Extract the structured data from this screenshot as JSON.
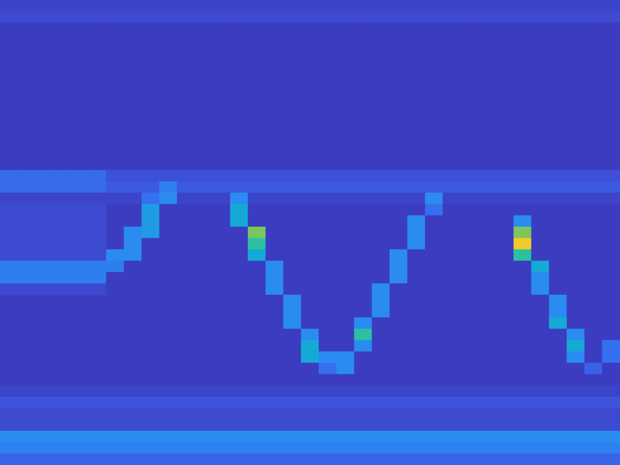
{
  "chart_data": {
    "type": "heatmap",
    "tick_labels": false,
    "grid": false,
    "color_range": [
      0,
      10
    ],
    "z": [
      [
        1.3,
        1.3,
        1.3,
        1.3,
        1.3,
        1.3,
        1.3,
        1.3,
        1.3,
        1.3,
        1.3,
        1.3,
        1.3,
        1.3,
        1.3,
        1.3,
        1.3,
        1.3,
        1.3,
        1.3,
        1.3,
        1.3,
        1.3,
        1.3,
        1.3,
        1.3,
        1.3,
        1.3,
        1.3,
        1.3,
        1.3,
        1.3,
        1.3,
        1.3,
        1.3
      ],
      [
        1.6,
        1.6,
        1.6,
        1.6,
        1.6,
        1.6,
        1.6,
        1.6,
        1.6,
        1.6,
        1.6,
        1.6,
        1.6,
        1.6,
        1.6,
        1.6,
        1.6,
        1.6,
        1.6,
        1.6,
        1.6,
        1.6,
        1.6,
        1.6,
        1.6,
        1.6,
        1.6,
        1.6,
        1.6,
        1.6,
        1.6,
        1.6,
        1.6,
        1.6,
        1.6
      ],
      [
        1,
        1,
        1,
        1,
        1,
        1,
        1,
        1,
        1,
        1,
        1,
        1,
        1,
        1,
        1,
        1,
        1,
        1,
        1,
        1,
        1,
        1,
        1,
        1,
        1,
        1,
        1,
        1,
        1,
        1,
        1,
        1,
        1,
        1,
        1
      ],
      [
        1,
        1,
        1,
        1,
        1,
        1,
        1,
        1,
        1,
        1,
        1,
        1,
        1,
        1,
        1,
        1,
        1,
        1,
        1,
        1,
        1,
        1,
        1,
        1,
        1,
        1,
        1,
        1,
        1,
        1,
        1,
        1,
        1,
        1,
        1
      ],
      [
        1,
        1,
        1,
        1,
        1,
        1,
        1,
        1,
        1,
        1,
        1,
        1,
        1,
        1,
        1,
        1,
        1,
        1,
        1,
        1,
        1,
        1,
        1,
        1,
        1,
        1,
        1,
        1,
        1,
        1,
        1,
        1,
        1,
        1,
        1
      ],
      [
        1,
        1,
        1,
        1,
        1,
        1,
        1,
        1,
        1,
        1,
        1,
        1,
        1,
        1,
        1,
        1,
        1,
        1,
        1,
        1,
        1,
        1,
        1,
        1,
        1,
        1,
        1,
        1,
        1,
        1,
        1,
        1,
        1,
        1,
        1
      ],
      [
        1,
        1,
        1,
        1,
        1,
        1,
        1,
        1,
        1,
        1,
        1,
        1,
        1,
        1,
        1,
        1,
        1,
        1,
        1,
        1,
        1,
        1,
        1,
        1,
        1,
        1,
        1,
        1,
        1,
        1,
        1,
        1,
        1,
        1,
        1
      ],
      [
        1,
        1,
        1,
        1,
        1,
        1,
        1,
        1,
        1,
        1,
        1,
        1,
        1,
        1,
        1,
        1,
        1,
        1,
        1,
        1,
        1,
        1,
        1,
        1,
        1,
        1,
        1,
        1,
        1,
        1,
        1,
        1,
        1,
        1,
        1
      ],
      [
        1,
        1,
        1,
        1,
        1,
        1,
        1,
        1,
        1,
        1,
        1,
        1,
        1,
        1,
        1,
        1,
        1,
        1,
        1,
        1,
        1,
        1,
        1,
        1,
        1,
        1,
        1,
        1,
        1,
        1,
        1,
        1,
        1,
        1,
        1
      ],
      [
        1,
        1,
        1,
        1,
        1,
        1,
        1,
        1,
        1,
        1,
        1,
        1,
        1,
        1,
        1,
        1,
        1,
        1,
        1,
        1,
        1,
        1,
        1,
        1,
        1,
        1,
        1,
        1,
        1,
        1,
        1,
        1,
        1,
        1,
        1
      ],
      [
        1,
        1,
        1,
        1,
        1,
        1,
        1,
        1,
        1,
        1,
        1,
        1,
        1,
        1,
        1,
        1,
        1,
        1,
        1,
        1,
        1,
        1,
        1,
        1,
        1,
        1,
        1,
        1,
        1,
        1,
        1,
        1,
        1,
        1,
        1
      ],
      [
        1,
        1,
        1,
        1,
        1,
        1,
        1,
        1,
        1,
        1,
        1,
        1,
        1,
        1,
        1,
        1,
        1,
        1,
        1,
        1,
        1,
        1,
        1,
        1,
        1,
        1,
        1,
        1,
        1,
        1,
        1,
        1,
        1,
        1,
        1
      ],
      [
        1,
        1,
        1,
        1,
        1,
        1,
        1,
        1,
        1,
        1,
        1,
        1,
        1,
        1,
        1,
        1,
        1,
        1,
        1,
        1,
        1,
        1,
        1,
        1,
        1,
        1,
        1,
        1,
        1,
        1,
        1,
        1,
        1,
        1,
        1
      ],
      [
        1,
        1,
        1,
        1,
        1,
        1,
        1,
        1,
        1,
        1,
        1,
        1,
        1,
        1,
        1,
        1,
        1,
        1,
        1,
        1,
        1,
        1,
        1,
        1,
        1,
        1,
        1,
        1,
        1,
        1,
        1,
        1,
        1,
        1,
        1
      ],
      [
        1,
        1,
        1,
        1,
        1,
        1,
        1,
        1,
        1,
        1,
        1,
        1,
        1,
        1,
        1,
        1,
        1,
        1,
        1,
        1,
        1,
        1,
        1,
        1,
        1,
        1,
        1,
        1,
        1,
        1,
        1,
        1,
        1,
        1,
        1
      ],
      [
        2.8,
        2.8,
        2.8,
        2.8,
        2.8,
        2.8,
        1.8,
        1.8,
        1.8,
        1.8,
        1.8,
        1.8,
        1.8,
        1.8,
        1.8,
        1.8,
        1.8,
        1.8,
        1.8,
        1.8,
        1.8,
        1.8,
        1.8,
        1.8,
        1.8,
        1.8,
        1.8,
        1.8,
        1.8,
        1.8,
        1.8,
        1.8,
        1.8,
        1.8,
        1.8
      ],
      [
        2.8,
        2.8,
        2.8,
        2.8,
        2.8,
        2.8,
        2.2,
        2.2,
        2.2,
        3.5,
        2.2,
        2.2,
        2.2,
        2.2,
        2.2,
        2.2,
        2.2,
        2.2,
        2.2,
        2.2,
        2.2,
        2.2,
        2.2,
        2.2,
        2.2,
        2.2,
        2.2,
        2.2,
        2.2,
        2.2,
        2.2,
        2.2,
        2.2,
        2.2,
        2.2
      ],
      [
        1.3,
        1.3,
        1.3,
        1.3,
        1.3,
        1.3,
        1.3,
        1.3,
        3,
        4,
        1.3,
        1.3,
        1.3,
        4,
        1.3,
        1.3,
        1.3,
        1.3,
        1.3,
        1.3,
        1.3,
        1.3,
        1.3,
        1.3,
        4,
        1.3,
        1.3,
        1.3,
        1.3,
        1.3,
        1.3,
        1.3,
        1.3,
        1.3,
        1.3
      ],
      [
        1.6,
        1.6,
        1.6,
        1.6,
        1.6,
        1.6,
        1,
        1,
        4.5,
        1,
        1,
        1,
        1,
        5,
        1,
        1,
        1,
        1,
        1,
        1,
        1,
        1,
        1,
        1,
        3,
        1,
        1,
        1,
        1,
        1,
        1,
        1,
        1,
        1,
        1
      ],
      [
        1.6,
        1.6,
        1.6,
        1.6,
        1.6,
        1.6,
        1,
        1,
        4.5,
        1,
        1,
        1,
        1,
        5,
        1,
        1,
        1,
        1,
        1,
        1,
        1,
        1,
        1,
        4,
        1,
        1,
        1,
        1,
        1,
        4,
        1,
        1,
        1,
        1,
        1
      ],
      [
        1.6,
        1.6,
        1.6,
        1.6,
        1.6,
        1.6,
        1,
        4,
        4.5,
        1,
        1,
        1,
        1,
        1,
        7,
        1,
        1,
        1,
        1,
        1,
        1,
        1,
        1,
        4,
        1,
        1,
        1,
        1,
        1,
        7,
        1,
        1,
        1,
        1,
        1
      ],
      [
        1.6,
        1.6,
        1.6,
        1.6,
        1.6,
        1.6,
        1,
        4,
        1,
        1,
        1,
        1,
        1,
        1,
        6,
        1,
        1,
        1,
        1,
        1,
        1,
        1,
        1,
        4,
        1,
        1,
        1,
        1,
        1,
        9,
        1,
        1,
        1,
        1,
        1
      ],
      [
        1.6,
        1.6,
        1.6,
        1.6,
        1.6,
        1.6,
        4,
        4,
        1,
        1,
        1,
        1,
        1,
        1,
        5,
        1,
        1,
        1,
        1,
        1,
        1,
        1,
        4,
        1,
        1,
        1,
        1,
        1,
        1,
        6,
        1,
        1,
        1,
        1,
        1
      ],
      [
        3.5,
        3.5,
        3.5,
        3.5,
        3.5,
        3.5,
        3.5,
        1,
        1,
        1,
        1,
        1,
        1,
        1,
        1,
        4,
        1,
        1,
        1,
        1,
        1,
        1,
        4,
        1,
        1,
        1,
        1,
        1,
        1,
        1,
        5,
        1,
        1,
        1,
        1
      ],
      [
        3.5,
        3.5,
        3.5,
        3.5,
        3.5,
        3.5,
        1,
        1,
        1,
        1,
        1,
        1,
        1,
        1,
        1,
        4,
        1,
        1,
        1,
        1,
        1,
        1,
        4,
        1,
        1,
        1,
        1,
        1,
        1,
        1,
        4,
        1,
        1,
        1,
        1
      ],
      [
        1.5,
        1.5,
        1.5,
        1.5,
        1.5,
        1.5,
        1,
        1,
        1,
        1,
        1,
        1,
        1,
        1,
        1,
        4,
        1,
        1,
        1,
        1,
        1,
        4,
        1,
        1,
        1,
        1,
        1,
        1,
        1,
        1,
        4,
        1,
        1,
        1,
        1
      ],
      [
        1,
        1,
        1,
        1,
        1,
        1,
        1,
        1,
        1,
        1,
        1,
        1,
        1,
        1,
        1,
        1,
        4,
        1,
        1,
        1,
        1,
        4,
        1,
        1,
        1,
        1,
        1,
        1,
        1,
        1,
        1,
        4,
        1,
        1,
        1
      ],
      [
        1,
        1,
        1,
        1,
        1,
        1,
        1,
        1,
        1,
        1,
        1,
        1,
        1,
        1,
        1,
        1,
        4,
        1,
        1,
        1,
        1,
        4,
        1,
        1,
        1,
        1,
        1,
        1,
        1,
        1,
        1,
        4,
        1,
        1,
        1
      ],
      [
        1,
        1,
        1,
        1,
        1,
        1,
        1,
        1,
        1,
        1,
        1,
        1,
        1,
        1,
        1,
        1,
        4,
        1,
        1,
        1,
        4,
        1,
        1,
        1,
        1,
        1,
        1,
        1,
        1,
        1,
        1,
        5,
        1,
        1,
        1
      ],
      [
        1,
        1,
        1,
        1,
        1,
        1,
        1,
        1,
        1,
        1,
        1,
        1,
        1,
        1,
        1,
        1,
        1,
        4,
        1,
        1,
        6,
        1,
        1,
        1,
        1,
        1,
        1,
        1,
        1,
        1,
        1,
        1,
        4,
        1,
        1
      ],
      [
        1,
        1,
        1,
        1,
        1,
        1,
        1,
        1,
        1,
        1,
        1,
        1,
        1,
        1,
        1,
        1,
        1,
        5,
        1,
        1,
        4,
        1,
        1,
        1,
        1,
        1,
        1,
        1,
        1,
        1,
        1,
        1,
        5,
        1,
        3
      ],
      [
        1,
        1,
        1,
        1,
        1,
        1,
        1,
        1,
        1,
        1,
        1,
        1,
        1,
        1,
        1,
        1,
        1,
        5,
        4,
        4,
        1,
        1,
        1,
        1,
        1,
        1,
        1,
        1,
        1,
        1,
        1,
        1,
        4,
        1,
        3
      ],
      [
        1,
        1,
        1,
        1,
        1,
        1,
        1,
        1,
        1,
        1,
        1,
        1,
        1,
        1,
        1,
        1,
        1,
        1,
        3,
        4,
        1,
        1,
        1,
        1,
        1,
        1,
        1,
        1,
        1,
        1,
        1,
        1,
        1,
        2.5,
        1
      ],
      [
        1,
        1,
        1,
        1,
        1,
        1,
        1,
        1,
        1,
        1,
        1,
        1,
        1,
        1,
        1,
        1,
        1,
        1,
        1,
        1,
        1,
        1,
        1,
        1,
        1,
        1,
        1,
        1,
        1,
        1,
        1,
        1,
        1,
        1,
        1
      ],
      [
        1.3,
        1.3,
        1.3,
        1.3,
        1.3,
        1.3,
        1.3,
        1.3,
        1.3,
        1.3,
        1.3,
        1.3,
        1.3,
        1.3,
        1.3,
        1.3,
        1.3,
        1.3,
        1.3,
        1.3,
        1.3,
        1.3,
        1.3,
        1.3,
        1.3,
        1.3,
        1.3,
        1.3,
        1.3,
        1.3,
        1.3,
        1.3,
        1.3,
        1.3,
        1.3
      ],
      [
        2,
        2,
        2,
        2,
        2,
        2,
        2,
        2,
        2,
        2,
        2,
        2,
        2,
        2,
        2,
        2,
        2,
        2,
        2,
        2,
        2,
        2,
        2,
        2,
        2,
        2,
        2,
        2,
        2,
        2,
        2,
        2,
        2,
        2,
        2
      ],
      [
        1.5,
        1.5,
        1.5,
        1.5,
        1.5,
        1.5,
        1.5,
        1.5,
        1.5,
        1.5,
        1.5,
        1.5,
        1.5,
        1.5,
        1.5,
        1.5,
        1.5,
        1.5,
        1.5,
        1.5,
        1.5,
        1.5,
        1.5,
        1.5,
        1.5,
        1.5,
        1.5,
        1.5,
        1.5,
        1.5,
        1.5,
        1.5,
        1.5,
        1.5,
        1.5
      ],
      [
        1.6,
        1.6,
        1.6,
        1.6,
        1.6,
        1.6,
        1.6,
        1.6,
        1.6,
        1.6,
        1.6,
        1.6,
        1.6,
        1.6,
        1.6,
        1.6,
        1.6,
        1.6,
        1.6,
        1.6,
        1.6,
        1.6,
        1.6,
        1.6,
        1.6,
        1.6,
        1.6,
        1.6,
        1.6,
        1.6,
        1.6,
        1.6,
        1.6,
        1.6,
        1.6
      ],
      [
        4,
        4,
        4,
        4,
        4,
        4,
        4,
        4,
        4,
        4,
        4,
        4,
        4,
        4,
        4,
        4,
        4,
        4,
        4,
        4,
        4,
        4,
        4,
        4,
        4,
        4,
        4,
        4,
        4,
        4,
        4,
        4,
        4,
        4,
        4
      ],
      [
        3.6,
        3.6,
        3.6,
        3.6,
        3.6,
        3.6,
        3.6,
        3.6,
        3.6,
        3.6,
        3.6,
        3.6,
        3.6,
        3.6,
        3.6,
        3.6,
        3.6,
        3.6,
        3.6,
        3.6,
        3.6,
        3.6,
        3.6,
        3.6,
        3.6,
        3.6,
        3.6,
        3.6,
        3.6,
        3.6,
        3.6,
        3.6,
        3.6,
        3.6,
        3.6
      ],
      [
        2.6,
        2.6,
        2.6,
        2.6,
        2.6,
        2.6,
        2.6,
        2.6,
        2.6,
        2.6,
        2.6,
        2.6,
        2.6,
        2.6,
        2.6,
        2.6,
        2.6,
        2.6,
        2.6,
        2.6,
        2.6,
        2.6,
        2.6,
        2.6,
        2.6,
        2.6,
        2.6,
        2.6,
        2.6,
        2.6,
        2.6,
        2.6,
        2.6,
        2.6,
        2.6
      ]
    ]
  }
}
